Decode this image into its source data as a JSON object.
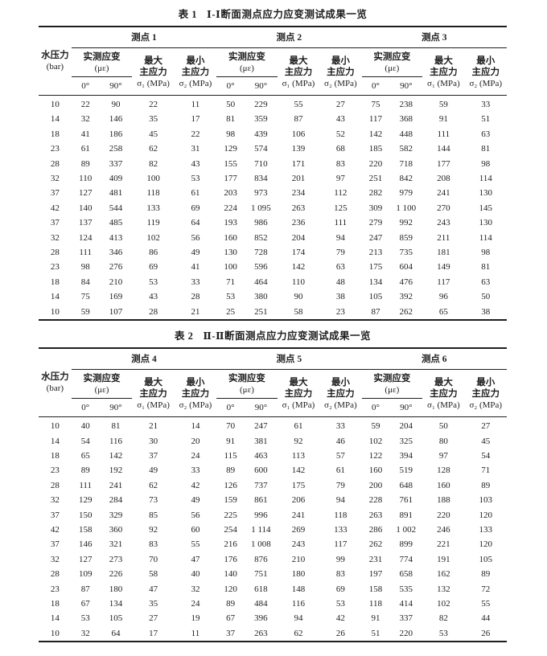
{
  "page": {
    "background": "#ffffff",
    "ink": "#1e1e1e"
  },
  "header_template": {
    "row_header": [
      "水压力",
      "(bar)"
    ],
    "strain": [
      "实测应变",
      "(με)"
    ],
    "max_stress": [
      "最大",
      "主应力",
      "σ₁ (MPa)"
    ],
    "min_stress": [
      "最小",
      "主应力",
      "σ₂ (MPa)"
    ],
    "deg0": "0°",
    "deg90": "90°"
  },
  "tables": [
    {
      "title_label": "表 1",
      "title_text": "Ⅰ-Ⅰ断面测点应力应变测试成果一览",
      "groups": [
        "测点 1",
        "测点 2",
        "测点 3"
      ],
      "rows": [
        [
          "10",
          "22",
          "90",
          "22",
          "11",
          "50",
          "229",
          "55",
          "27",
          "75",
          "238",
          "59",
          "33"
        ],
        [
          "14",
          "32",
          "146",
          "35",
          "17",
          "81",
          "359",
          "87",
          "43",
          "117",
          "368",
          "91",
          "51"
        ],
        [
          "18",
          "41",
          "186",
          "45",
          "22",
          "98",
          "439",
          "106",
          "52",
          "142",
          "448",
          "111",
          "63"
        ],
        [
          "23",
          "61",
          "258",
          "62",
          "31",
          "129",
          "574",
          "139",
          "68",
          "185",
          "582",
          "144",
          "81"
        ],
        [
          "28",
          "89",
          "337",
          "82",
          "43",
          "155",
          "710",
          "171",
          "83",
          "220",
          "718",
          "177",
          "98"
        ],
        [
          "32",
          "110",
          "409",
          "100",
          "53",
          "177",
          "834",
          "201",
          "97",
          "251",
          "842",
          "208",
          "114"
        ],
        [
          "37",
          "127",
          "481",
          "118",
          "61",
          "203",
          "973",
          "234",
          "112",
          "282",
          "979",
          "241",
          "130"
        ],
        [
          "42",
          "140",
          "544",
          "133",
          "69",
          "224",
          "1 095",
          "263",
          "125",
          "309",
          "1 100",
          "270",
          "145"
        ],
        [
          "37",
          "137",
          "485",
          "119",
          "64",
          "193",
          "986",
          "236",
          "111",
          "279",
          "992",
          "243",
          "130"
        ],
        [
          "32",
          "124",
          "413",
          "102",
          "56",
          "160",
          "852",
          "204",
          "94",
          "247",
          "859",
          "211",
          "114"
        ],
        [
          "28",
          "111",
          "346",
          "86",
          "49",
          "130",
          "728",
          "174",
          "79",
          "213",
          "735",
          "181",
          "98"
        ],
        [
          "23",
          "98",
          "276",
          "69",
          "41",
          "100",
          "596",
          "142",
          "63",
          "175",
          "604",
          "149",
          "81"
        ],
        [
          "18",
          "84",
          "210",
          "53",
          "33",
          "71",
          "464",
          "110",
          "48",
          "134",
          "476",
          "117",
          "63"
        ],
        [
          "14",
          "75",
          "169",
          "43",
          "28",
          "53",
          "380",
          "90",
          "38",
          "105",
          "392",
          "96",
          "50"
        ],
        [
          "10",
          "59",
          "107",
          "28",
          "21",
          "25",
          "251",
          "58",
          "23",
          "87",
          "262",
          "65",
          "38"
        ]
      ]
    },
    {
      "title_label": "表 2",
      "title_text": "Ⅱ-Ⅱ断面测点应力应变测试成果一览",
      "groups": [
        "测点 4",
        "测点 5",
        "测点 6"
      ],
      "rows": [
        [
          "10",
          "40",
          "81",
          "21",
          "14",
          "70",
          "247",
          "61",
          "33",
          "59",
          "204",
          "50",
          "27"
        ],
        [
          "14",
          "54",
          "116",
          "30",
          "20",
          "91",
          "381",
          "92",
          "46",
          "102",
          "325",
          "80",
          "45"
        ],
        [
          "18",
          "65",
          "142",
          "37",
          "24",
          "115",
          "463",
          "113",
          "57",
          "122",
          "394",
          "97",
          "54"
        ],
        [
          "23",
          "89",
          "192",
          "49",
          "33",
          "89",
          "600",
          "142",
          "61",
          "160",
          "519",
          "128",
          "71"
        ],
        [
          "28",
          "111",
          "241",
          "62",
          "42",
          "126",
          "737",
          "175",
          "79",
          "200",
          "648",
          "160",
          "89"
        ],
        [
          "32",
          "129",
          "284",
          "73",
          "49",
          "159",
          "861",
          "206",
          "94",
          "228",
          "761",
          "188",
          "103"
        ],
        [
          "37",
          "150",
          "329",
          "85",
          "56",
          "225",
          "996",
          "241",
          "118",
          "263",
          "891",
          "220",
          "120"
        ],
        [
          "42",
          "158",
          "360",
          "92",
          "60",
          "254",
          "1 114",
          "269",
          "133",
          "286",
          "1 002",
          "246",
          "133"
        ],
        [
          "37",
          "146",
          "321",
          "83",
          "55",
          "216",
          "1 008",
          "243",
          "117",
          "262",
          "899",
          "221",
          "120"
        ],
        [
          "32",
          "127",
          "273",
          "70",
          "47",
          "176",
          "876",
          "210",
          "99",
          "231",
          "774",
          "191",
          "105"
        ],
        [
          "28",
          "109",
          "226",
          "58",
          "40",
          "140",
          "751",
          "180",
          "83",
          "197",
          "658",
          "162",
          "89"
        ],
        [
          "23",
          "87",
          "180",
          "47",
          "32",
          "120",
          "618",
          "148",
          "69",
          "158",
          "535",
          "132",
          "72"
        ],
        [
          "18",
          "67",
          "134",
          "35",
          "24",
          "89",
          "484",
          "116",
          "53",
          "118",
          "414",
          "102",
          "55"
        ],
        [
          "14",
          "53",
          "105",
          "27",
          "19",
          "67",
          "396",
          "94",
          "42",
          "91",
          "337",
          "82",
          "44"
        ],
        [
          "10",
          "32",
          "64",
          "17",
          "11",
          "37",
          "263",
          "62",
          "26",
          "51",
          "220",
          "53",
          "26"
        ]
      ]
    }
  ]
}
